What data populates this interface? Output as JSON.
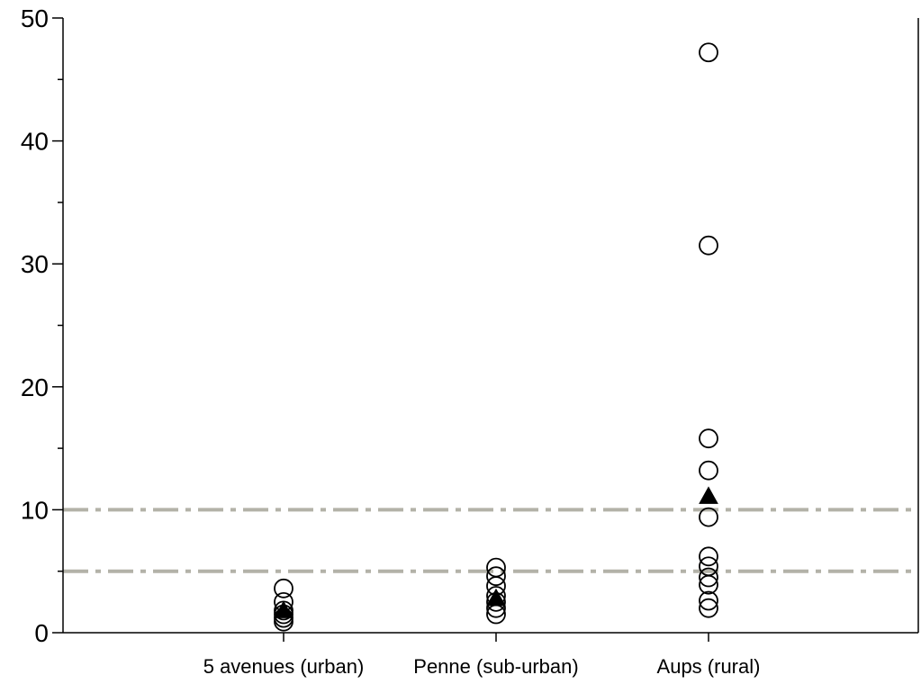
{
  "chart_data": {
    "type": "scatter",
    "title": "",
    "xlabel": "",
    "ylabel": "",
    "categories": [
      "5 avenues (urban)",
      "Penne (sub-urban)",
      "Aups (rural)"
    ],
    "ylim": [
      0,
      50
    ],
    "yticks": [
      0,
      10,
      20,
      30,
      40,
      50
    ],
    "grid": false,
    "legend": "none",
    "series": [
      {
        "marker": "open-circle",
        "points": [
          {
            "category": "5 avenues (urban)",
            "values": [
              0.9,
              1.2,
              1.5,
              1.8,
              2.5,
              3.6
            ]
          },
          {
            "category": "Penne (sub-urban)",
            "values": [
              1.5,
              2.0,
              2.5,
              3.0,
              3.8,
              4.6,
              5.3
            ]
          },
          {
            "category": "Aups (rural)",
            "values": [
              2.0,
              2.6,
              3.9,
              4.5,
              5.4,
              6.2,
              9.4,
              13.2,
              15.8,
              31.5,
              47.2
            ]
          }
        ]
      },
      {
        "marker": "filled-triangle",
        "points": [
          {
            "category": "5 avenues (urban)",
            "values": [
              1.8
            ]
          },
          {
            "category": "Penne (sub-urban)",
            "values": [
              2.8
            ]
          },
          {
            "category": "Aups (rural)",
            "values": [
              11.1
            ]
          }
        ]
      }
    ],
    "reference_lines": [
      {
        "y": 10,
        "style": "dash-dot",
        "color": "#b3b2a8"
      },
      {
        "y": 5,
        "style": "dash-dot",
        "color": "#b3b2a8"
      }
    ]
  }
}
